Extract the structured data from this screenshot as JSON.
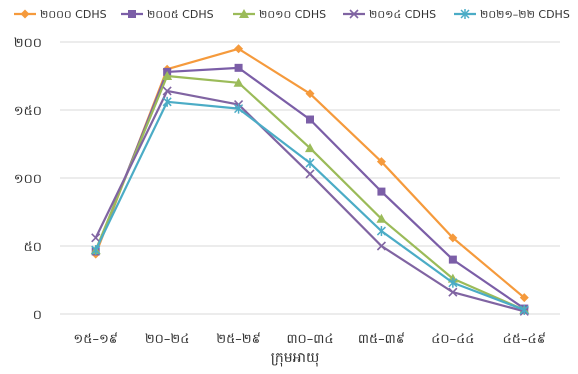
{
  "chart_data": {
    "type": "line",
    "xlabel": "ក្រុមអាយុ",
    "ylabel": "",
    "ylim": [
      0,
      200
    ],
    "yticks": [
      "០",
      "៥០",
      "១០០",
      "១៥០",
      "២០០"
    ],
    "ytick_values": [
      0,
      50,
      100,
      150,
      200
    ],
    "grid": true,
    "legend_position": "top",
    "categories": [
      "១៥–១៩",
      "២០–២៤",
      "២៥–២៩",
      "៣០–៣៤",
      "៣៥–៣៩",
      "៤០–៤៤",
      "៤៥–៤៩"
    ],
    "series": [
      {
        "name": "២០០០ CDHS",
        "color": "#f59a3c",
        "marker": "diamond",
        "values": [
          44,
          180,
          195,
          162,
          112,
          56,
          12
        ]
      },
      {
        "name": "២០០៥ CDHS",
        "color": "#7b5ea7",
        "marker": "square",
        "values": [
          46,
          178,
          181,
          143,
          90,
          40,
          4
        ]
      },
      {
        "name": "២០១០ CDHS",
        "color": "#9bbb59",
        "marker": "triangle",
        "values": [
          47,
          175,
          170,
          122,
          70,
          26,
          3
        ]
      },
      {
        "name": "២០១៤ CDHS",
        "color": "#8064a2",
        "marker": "x",
        "values": [
          56,
          164,
          154,
          103,
          50,
          16,
          2
        ]
      },
      {
        "name": "២០២១–២២ CDHS",
        "color": "#4bacc6",
        "marker": "star",
        "values": [
          47,
          156,
          151,
          111,
          61,
          23,
          3
        ]
      }
    ]
  }
}
